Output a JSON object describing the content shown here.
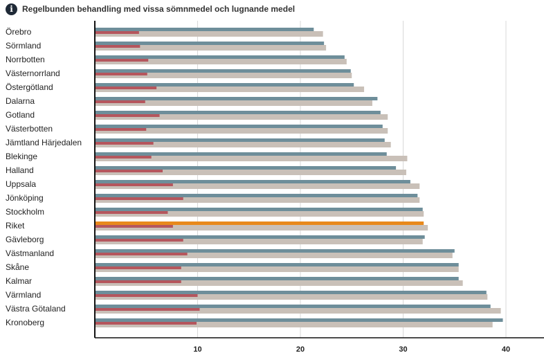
{
  "header": {
    "title": "Regelbunden behandling med vissa sömnmedel och lugnande medel",
    "info_icon": "info-icon"
  },
  "chart_data": {
    "type": "bar",
    "orientation": "horizontal",
    "title": "Regelbunden behandling med vissa sömnmedel och lugnande medel",
    "xlim": [
      0,
      44
    ],
    "xticks": [
      10,
      20,
      30,
      40
    ],
    "grid": true,
    "legend": "none",
    "categories": [
      "Örebro",
      "Sörmland",
      "Norrbotten",
      "Västernorrland",
      "Östergötland",
      "Dalarna",
      "Gotland",
      "Västerbotten",
      "Jämtland Härjedalen",
      "Blekinge",
      "Halland",
      "Uppsala",
      "Jönköping",
      "Stockholm",
      "Riket",
      "Gävleborg",
      "Västmanland",
      "Skåne",
      "Kalmar",
      "Värmland",
      "Västra Götaland",
      "Kronoberg"
    ],
    "highlight_category": "Riket",
    "series": [
      {
        "color": "#6e8e9a",
        "highlight_color": "#e8891c",
        "values": [
          21.3,
          22.3,
          24.3,
          24.9,
          25.2,
          27.5,
          27.8,
          28.0,
          28.2,
          28.4,
          29.3,
          30.7,
          31.4,
          31.9,
          32.0,
          32.1,
          35.0,
          35.4,
          35.4,
          38.1,
          38.5,
          39.7
        ]
      },
      {
        "color": "#c9c0b8",
        "values": [
          22.2,
          22.5,
          24.5,
          25.0,
          26.2,
          27.0,
          28.5,
          28.5,
          28.8,
          30.4,
          30.3,
          31.6,
          31.6,
          32.0,
          32.4,
          31.9,
          34.8,
          35.4,
          35.8,
          38.2,
          39.5,
          38.7
        ]
      },
      {
        "color": "#b5565d",
        "values": [
          4.3,
          4.4,
          5.2,
          5.1,
          6.0,
          4.9,
          6.3,
          5.0,
          5.7,
          5.5,
          6.6,
          7.6,
          8.6,
          7.1,
          7.6,
          8.6,
          9.0,
          8.4,
          8.4,
          10.0,
          10.2,
          9.9
        ]
      }
    ]
  }
}
